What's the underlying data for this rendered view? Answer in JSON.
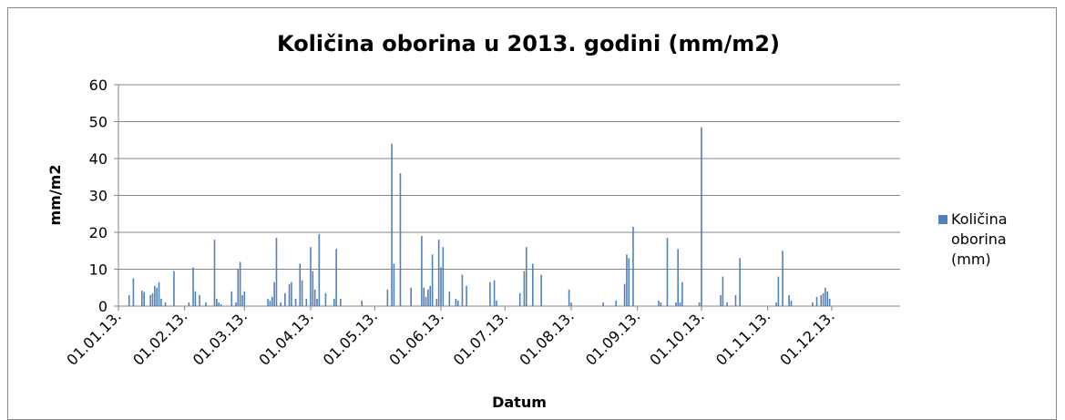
{
  "chart_data": {
    "type": "bar",
    "title": "Količina oborina u 2013. godini (mm/m2)",
    "x_label": "Datum",
    "y_label": "mm/m2",
    "xlim": [
      "2013-01-01",
      "2014-01-02"
    ],
    "xticks": [
      {
        "value": "2013-01-01",
        "label": "01.01.13."
      },
      {
        "value": "2013-02-01",
        "label": "01.02.13."
      },
      {
        "value": "2013-03-01",
        "label": "01.03.13."
      },
      {
        "value": "2013-04-01",
        "label": "01.04.13."
      },
      {
        "value": "2013-05-01",
        "label": "01.05.13."
      },
      {
        "value": "2013-06-01",
        "label": "01.06.13."
      },
      {
        "value": "2013-07-01",
        "label": "01.07.13."
      },
      {
        "value": "2013-08-01",
        "label": "01.08.13."
      },
      {
        "value": "2013-09-01",
        "label": "01.09.13."
      },
      {
        "value": "2013-10-01",
        "label": "01.10.13."
      },
      {
        "value": "2013-11-01",
        "label": "01.11.13."
      },
      {
        "value": "2013-12-01",
        "label": "01.12.13."
      }
    ],
    "ylim": [
      0,
      60
    ],
    "yticks": [
      0,
      10,
      20,
      30,
      40,
      50,
      60
    ],
    "grid": true,
    "legend": "right",
    "x": [
      "2013-01-06",
      "2013-01-08",
      "2013-01-12",
      "2013-01-13",
      "2013-01-16",
      "2013-01-17",
      "2013-01-18",
      "2013-01-19",
      "2013-01-20",
      "2013-01-21",
      "2013-01-23",
      "2013-01-27",
      "2013-02-03",
      "2013-02-05",
      "2013-02-06",
      "2013-02-08",
      "2013-02-11",
      "2013-02-15",
      "2013-02-16",
      "2013-02-17",
      "2013-02-18",
      "2013-02-23",
      "2013-02-25",
      "2013-02-26",
      "2013-02-27",
      "2013-02-28",
      "2013-03-01",
      "2013-03-12",
      "2013-03-13",
      "2013-03-14",
      "2013-03-15",
      "2013-03-16",
      "2013-03-18",
      "2013-03-20",
      "2013-03-22",
      "2013-03-23",
      "2013-03-25",
      "2013-03-27",
      "2013-03-28",
      "2013-03-30",
      "2013-04-01",
      "2013-04-02",
      "2013-04-03",
      "2013-04-04",
      "2013-04-05",
      "2013-04-08",
      "2013-04-12",
      "2013-04-13",
      "2013-04-15",
      "2013-04-25",
      "2013-05-07",
      "2013-05-09",
      "2013-05-10",
      "2013-05-13",
      "2013-05-18",
      "2013-05-23",
      "2013-05-24",
      "2013-05-25",
      "2013-05-26",
      "2013-05-27",
      "2013-05-28",
      "2013-05-30",
      "2013-05-31",
      "2013-06-01",
      "2013-06-02",
      "2013-06-05",
      "2013-06-08",
      "2013-06-09",
      "2013-06-11",
      "2013-06-13",
      "2013-06-24",
      "2013-06-26",
      "2013-06-27",
      "2013-07-08",
      "2013-07-10",
      "2013-07-11",
      "2013-07-14",
      "2013-07-18",
      "2013-07-31",
      "2013-08-01",
      "2013-08-16",
      "2013-08-22",
      "2013-08-26",
      "2013-08-27",
      "2013-08-28",
      "2013-08-30",
      "2013-09-11",
      "2013-09-12",
      "2013-09-15",
      "2013-09-19",
      "2013-09-20",
      "2013-09-21",
      "2013-09-22",
      "2013-09-30",
      "2013-10-01",
      "2013-10-10",
      "2013-10-11",
      "2013-10-13",
      "2013-10-17",
      "2013-10-19",
      "2013-11-05",
      "2013-11-06",
      "2013-11-08",
      "2013-11-11",
      "2013-11-12",
      "2013-11-22",
      "2013-11-24",
      "2013-11-26",
      "2013-11-27",
      "2013-11-28",
      "2013-11-29",
      "2013-11-30"
    ],
    "series": [
      {
        "name": "Količina oborina (mm)",
        "color": "#4f81bd",
        "values": [
          3,
          7.5,
          4.2,
          3.8,
          3,
          3.5,
          5.5,
          5,
          6.5,
          2,
          1,
          9.5,
          1,
          10.5,
          4,
          3,
          1,
          18,
          2,
          1,
          0.5,
          4,
          1,
          10,
          12,
          3,
          4,
          2,
          1.5,
          2.5,
          6.5,
          18.5,
          1,
          3.5,
          6,
          6.5,
          2,
          11.5,
          7,
          2,
          16,
          9.5,
          4.5,
          2,
          19.5,
          3.5,
          2,
          15.5,
          2,
          1.5,
          4.5,
          44,
          11.5,
          36,
          5,
          19,
          5,
          2.5,
          4.5,
          5.5,
          14,
          2,
          18,
          10.5,
          16,
          4,
          2,
          1.5,
          8.5,
          5.5,
          6.5,
          7,
          1.5,
          3.5,
          9.5,
          16,
          11.5,
          8.5,
          4.5,
          1,
          1,
          1.5,
          6,
          14,
          13,
          21.5,
          1.5,
          1,
          18.5,
          1,
          15.5,
          1,
          6.5,
          1,
          48.5,
          3,
          8,
          1,
          3,
          13,
          1,
          8,
          15,
          3,
          1.5,
          1,
          2.5,
          3,
          3.5,
          5,
          4,
          2
        ]
      }
    ]
  }
}
